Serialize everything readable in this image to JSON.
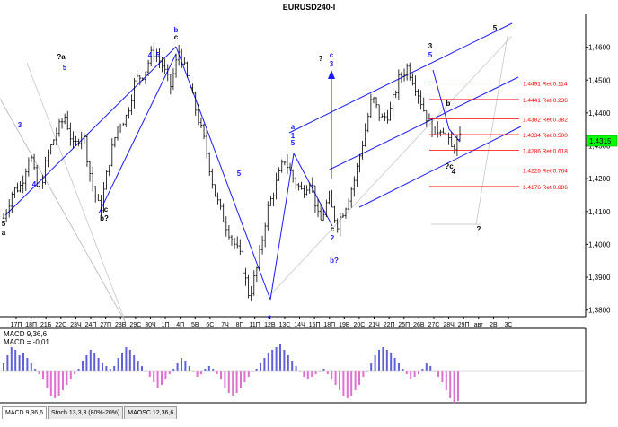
{
  "window": {
    "title": "EURUSD240-I"
  },
  "chart_data": {
    "type": "candlestick",
    "symbol": "EURUSD",
    "timeframe": "H4",
    "ylim": [
      1.378,
      1.47
    ],
    "y_ticks": [
      "1,4600",
      "1,4500",
      "1,4400",
      "1,4300",
      "1,4200",
      "1,4100",
      "1,4000",
      "1,3900",
      "1,3800"
    ],
    "y_tick_values": [
      1.46,
      1.45,
      1.44,
      1.43,
      1.42,
      1.41,
      1.4,
      1.39,
      1.38
    ],
    "current_price_label": "1,4315",
    "current_price": 1.4315,
    "x_ticks": [
      "17П",
      "18П",
      "21Б",
      "22С",
      "23Ч",
      "24П",
      "27П",
      "28В",
      "29С",
      "30Ч",
      "1П",
      "4П",
      "5В",
      "6С",
      "7Ч",
      "8П",
      "11П",
      "12В",
      "13С",
      "14Ч",
      "15П",
      "18П",
      "19В",
      "20С",
      "21Ч",
      "22П",
      "25П",
      "26В",
      "27С",
      "28Ч",
      "29П",
      "авг",
      "2В",
      "3С"
    ],
    "price_path": [
      1.408,
      1.416,
      1.418,
      1.428,
      1.415,
      1.427,
      1.434,
      1.439,
      1.429,
      1.435,
      1.419,
      1.41,
      1.425,
      1.436,
      1.439,
      1.45,
      1.452,
      1.459,
      1.455,
      1.448,
      1.459,
      1.45,
      1.44,
      1.43,
      1.416,
      1.408,
      1.402,
      1.396,
      1.384,
      1.394,
      1.41,
      1.418,
      1.426,
      1.42,
      1.416,
      1.42,
      1.406,
      1.414,
      1.406,
      1.412,
      1.42,
      1.432,
      1.445,
      1.438,
      1.44,
      1.45,
      1.454,
      1.448,
      1.44,
      1.434,
      1.436,
      1.429,
      1.432
    ],
    "fib_levels": [
      {
        "value": 1.4491,
        "label": "1.4491 Ret 0.114"
      },
      {
        "value": 1.4441,
        "label": "1.4441 Ret 0.236"
      },
      {
        "value": 1.4382,
        "label": "1.4382 Ret 0.382"
      },
      {
        "value": 1.4334,
        "label": "1.4334 Ret 0.500"
      },
      {
        "value": 1.4286,
        "label": "1.4286 Ret 0.618"
      },
      {
        "value": 1.4226,
        "label": "1.4226 Ret 0.764"
      },
      {
        "value": 1.4176,
        "label": "1.4176 Ret 0.886"
      }
    ],
    "wave_labels": [
      {
        "text": "5",
        "color": "#000000"
      },
      {
        "text": "a",
        "color": "#000000"
      },
      {
        "text": "3",
        "color": "#1a1aff"
      },
      {
        "text": "4",
        "color": "#1a1aff"
      },
      {
        "text": "?a",
        "color": "#000000"
      },
      {
        "text": "5",
        "color": "#1a1aff"
      },
      {
        "text": "b?",
        "color": "#000000"
      },
      {
        "text": "c",
        "color": "#000000"
      },
      {
        "text": "b",
        "color": "#1a1aff"
      },
      {
        "text": "c",
        "color": "#000000"
      },
      {
        "text": "4",
        "color": "#1a1aff"
      },
      {
        "text": "5",
        "color": "#1a1aff"
      },
      {
        "text": "5",
        "color": "#1a1aff"
      },
      {
        "text": "c",
        "color": "#1a1aff"
      },
      {
        "text": "a",
        "color": "#1a1aff"
      },
      {
        "text": "1",
        "color": "#1a1aff"
      },
      {
        "text": "5",
        "color": "#1a1aff"
      },
      {
        "text": "?",
        "color": "#000000"
      },
      {
        "text": "c",
        "color": "#1a1aff"
      },
      {
        "text": "3",
        "color": "#1a1aff"
      },
      {
        "text": "2",
        "color": "#1a1aff"
      },
      {
        "text": "b?",
        "color": "#1a1aff"
      },
      {
        "text": "c",
        "color": "#000000"
      },
      {
        "text": "3",
        "color": "#000000"
      },
      {
        "text": "5",
        "color": "#1a1aff"
      },
      {
        "text": "b",
        "color": "#000000"
      },
      {
        "text": "?c",
        "color": "#000000"
      },
      {
        "text": "4",
        "color": "#000000"
      },
      {
        "text": "5",
        "color": "#000000"
      },
      {
        "text": "?",
        "color": "#000000"
      }
    ],
    "indicator": {
      "name_label": "MACD 9,36,6",
      "value_label": "MACD = -0,01",
      "histogram": [
        3,
        6,
        9,
        8,
        6,
        7,
        5,
        3,
        1,
        -1,
        -3,
        -6,
        -9,
        -10,
        -9,
        -7,
        -5,
        -3,
        -1,
        1,
        4,
        6,
        8,
        7,
        5,
        3,
        2,
        1,
        2,
        5,
        7,
        9,
        8,
        6,
        4,
        2,
        0,
        -2,
        -4,
        -6,
        -5,
        -3,
        -1,
        1,
        3,
        5,
        4,
        2,
        0,
        -2,
        -1,
        1,
        2,
        1,
        -1,
        -3,
        -6,
        -8,
        -9,
        -8,
        -6,
        -4,
        -2,
        0,
        1,
        3,
        5,
        7,
        8,
        9,
        10,
        8,
        6,
        4,
        2,
        0,
        -2,
        -3,
        -2,
        -1,
        0,
        1,
        -1,
        -3,
        -5,
        -7,
        -9,
        -10,
        -9,
        -7,
        -5,
        -2,
        0,
        3,
        6,
        8,
        9,
        8,
        7,
        5,
        3,
        1,
        -1,
        -3,
        -2,
        -1,
        1,
        3,
        2,
        0,
        -2,
        -4,
        -7,
        -10,
        -12,
        -11
      ],
      "color_positive": "#6060d8",
      "color_negative": "#e070d0"
    },
    "colors": {
      "channel": "#1a1aff",
      "fibonacci": "#ff0000",
      "arrow": "#1a1aff",
      "grey_line": "#c0c0c0",
      "price_box": "#00ff00"
    }
  },
  "bottom_tabs": [
    {
      "label": "MACD 9,36,6",
      "active": true
    },
    {
      "label": "Stoch 13,3,3 (80%-20%)",
      "active": false
    },
    {
      "label": "MAOSC 12,36,6",
      "active": false
    }
  ]
}
